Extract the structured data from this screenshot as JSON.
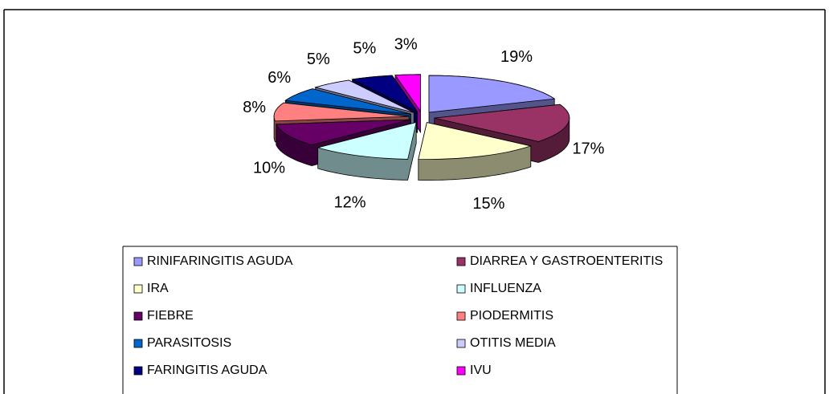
{
  "chart_data": {
    "type": "pie3d",
    "categories": [
      "RINIFARINGITIS AGUDA",
      "DIARREA Y GASTROENTERITIS",
      "IRA",
      "INFLUENZA",
      "FIEBRE",
      "PIODERMITIS",
      "PARASITOSIS",
      "OTITIS MEDIA",
      "FARINGITIS AGUDA",
      "IVU"
    ],
    "values": [
      19,
      17,
      15,
      12,
      10,
      8,
      6,
      5,
      5,
      3
    ],
    "value_labels": [
      "19%",
      "17%",
      "15%",
      "12%",
      "10%",
      "8%",
      "6%",
      "5%",
      "5%",
      "3%"
    ],
    "colors": [
      "#9999ff",
      "#993366",
      "#ffffcc",
      "#ccffff",
      "#660066",
      "#ff8080",
      "#0066cc",
      "#ccccff",
      "#000080",
      "#ff00ff"
    ],
    "legend": "bottom"
  }
}
